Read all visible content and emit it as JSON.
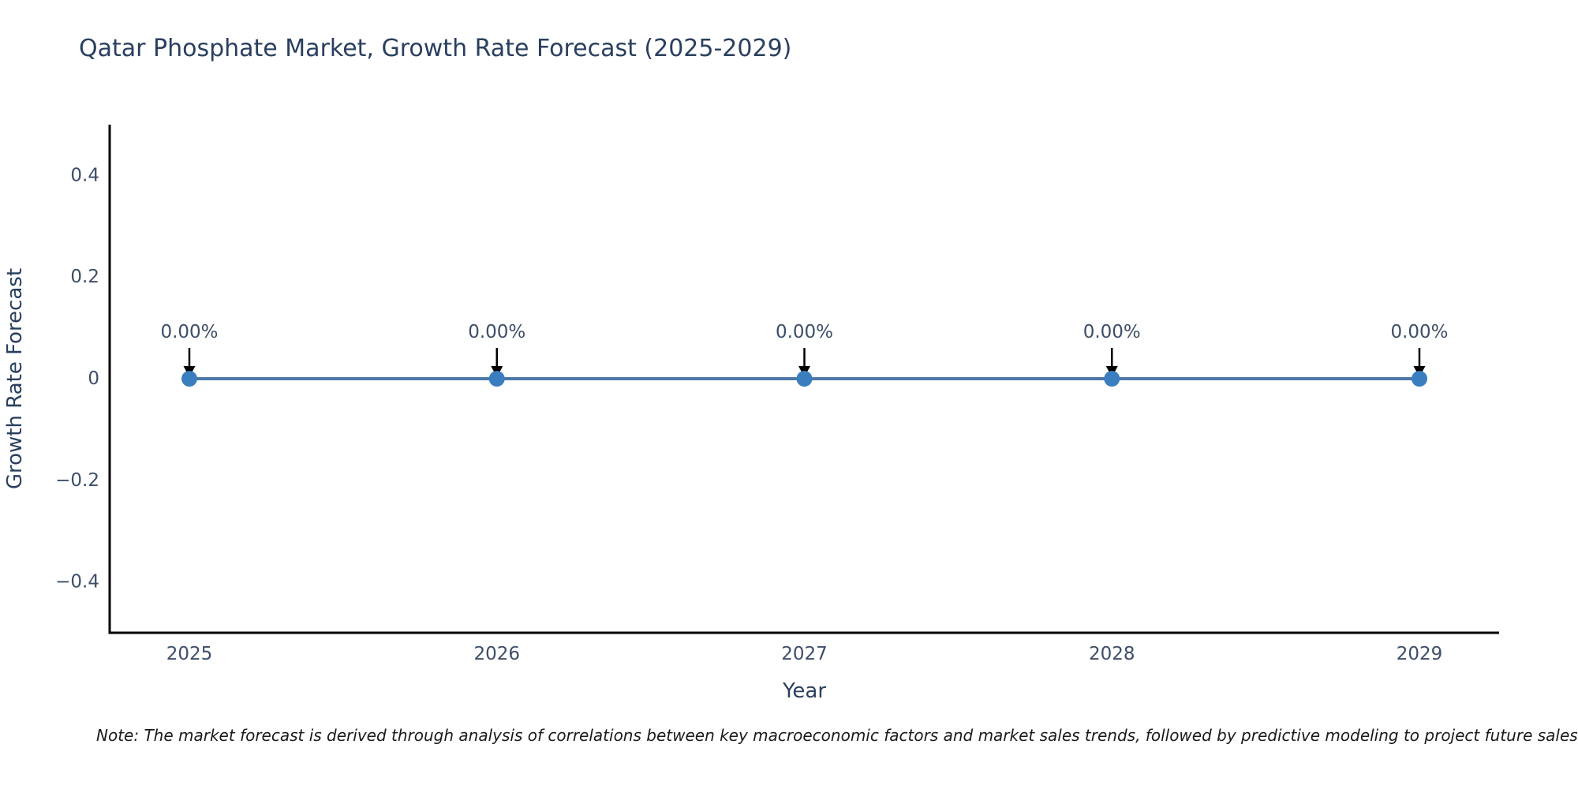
{
  "title": "Qatar Phosphate Market, Growth Rate Forecast (2025-2029)",
  "note": "Note: The market forecast is derived through analysis of correlations between key macroeconomic factors and market sales trends, followed by predictive modeling to project future sales",
  "colors": {
    "title_text": "#2a3f5f",
    "axis_title_text": "#2a3f5f",
    "tick_text": "#3d4e68",
    "annotation_text": "#3d4e68",
    "note_text": "#1a1a1a",
    "line": "#4c78a8",
    "marker": "#3a7ebf",
    "axis_line": "#000000",
    "arrow": "#000000",
    "background": "#ffffff"
  },
  "chart_data": {
    "type": "line",
    "title": "Qatar Phosphate Market, Growth Rate Forecast (2025-2029)",
    "xlabel": "Year",
    "ylabel": "Growth Rate Forecast",
    "x": [
      2025,
      2026,
      2027,
      2028,
      2029
    ],
    "x_tick_labels": [
      "2025",
      "2026",
      "2027",
      "2028",
      "2029"
    ],
    "series": [
      {
        "name": "Growth Rate Forecast",
        "values": [
          0,
          0,
          0,
          0,
          0
        ],
        "point_labels": [
          "0.00%",
          "0.00%",
          "0.00%",
          "0.00%",
          "0.00%"
        ]
      }
    ],
    "ylim": [
      -0.5,
      0.5
    ],
    "yticks": [
      0.4,
      0.2,
      0,
      -0.2,
      -0.4
    ],
    "ytick_labels": [
      "0.4",
      "0.2",
      "0",
      "−0.2",
      "−0.4"
    ],
    "grid": false,
    "legend": "none",
    "annotations_have_arrows": true
  }
}
